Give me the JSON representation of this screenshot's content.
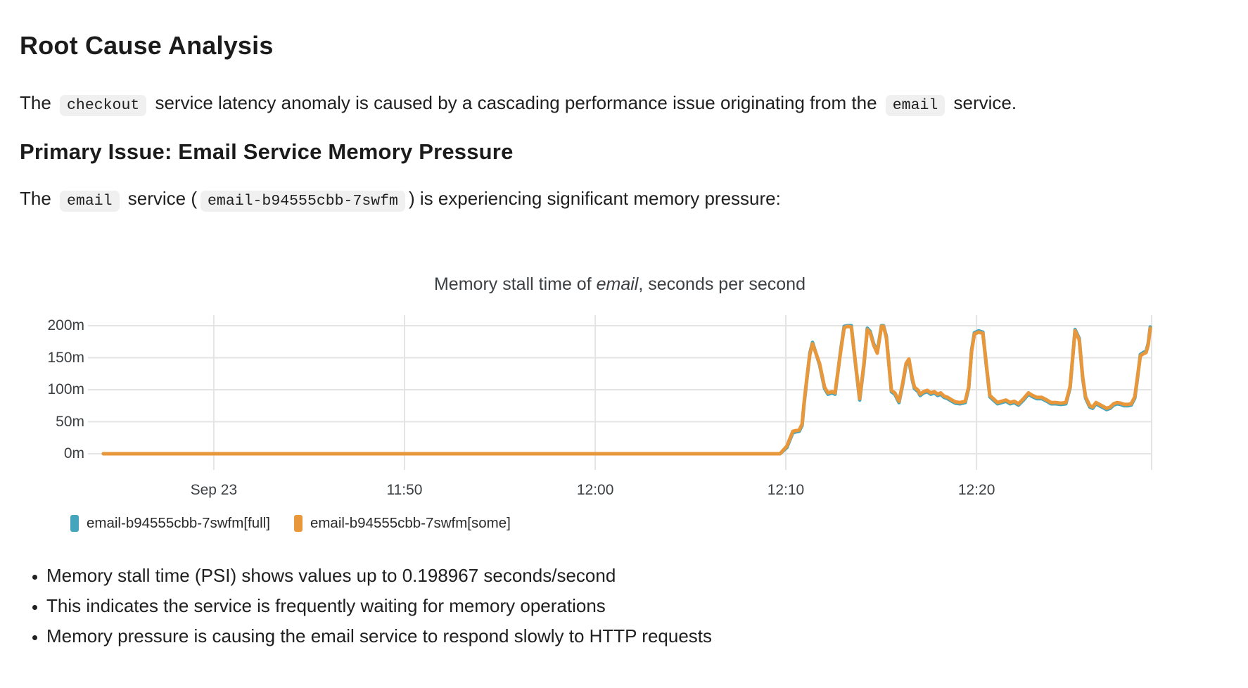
{
  "document": {
    "h1": "Root Cause Analysis",
    "p1": {
      "segments": [
        {
          "text": "The "
        },
        {
          "code": "checkout"
        },
        {
          "text": " service latency anomaly is caused by a cascading performance issue originating from the "
        },
        {
          "code": "email"
        },
        {
          "text": " service."
        }
      ]
    },
    "h2": "Primary Issue: Email Service Memory Pressure",
    "p2": {
      "segments": [
        {
          "text": "The "
        },
        {
          "code": "email"
        },
        {
          "text": " service ("
        },
        {
          "code": "email-b94555cbb-7swfm"
        },
        {
          "text": ") is experiencing significant memory pressure:"
        }
      ]
    },
    "findings": [
      "Memory stall time (PSI) shows values up to 0.198967 seconds/second",
      "This indicates the service is frequently waiting for memory operations",
      "Memory pressure is causing the email service to respond slowly to HTTP requests"
    ]
  },
  "chart_data": {
    "type": "line",
    "title_segments": [
      {
        "text": "Memory stall time of "
      },
      {
        "text": "email",
        "italic": true
      },
      {
        "text": ", seconds per second"
      }
    ],
    "title_plain": "Memory stall time of email, seconds per second",
    "ylim": [
      0,
      200
    ],
    "y_unit": "m",
    "grid": true,
    "legend_position": "bottom-left",
    "y_ticks": [
      {
        "value": 0,
        "label": "0m"
      },
      {
        "value": 50,
        "label": "50m"
      },
      {
        "value": 100,
        "label": "100m"
      },
      {
        "value": 150,
        "label": "150m"
      },
      {
        "value": 200,
        "label": "200m"
      }
    ],
    "x_ticks": [
      {
        "t": 5.78,
        "label": "Sep 23"
      },
      {
        "t": 15.77,
        "label": "11:50"
      },
      {
        "t": 25.76,
        "label": "12:00"
      },
      {
        "t": 35.74,
        "label": "12:10"
      },
      {
        "t": 45.73,
        "label": "12:20"
      }
    ],
    "x_note": "t = minutes from start of plotted window; series flat at 0 until ~12:10 then oscillates 70m-200m",
    "max_value_seconds": 0.198967,
    "series": [
      {
        "key": "full",
        "name": "email-b94555cbb-7swfm[full]",
        "color": "#45A5BD",
        "points": [
          [
            0,
            0
          ],
          [
            35.44,
            0
          ],
          [
            35.8,
            10
          ],
          [
            36.11,
            33
          ],
          [
            36.25,
            34
          ],
          [
            36.44,
            35
          ],
          [
            36.59,
            44
          ],
          [
            36.7,
            78
          ],
          [
            36.85,
            118
          ],
          [
            37,
            157
          ],
          [
            37.14,
            174
          ],
          [
            37.51,
            139
          ],
          [
            37.77,
            102
          ],
          [
            37.95,
            93
          ],
          [
            38.17,
            95
          ],
          [
            38.32,
            93
          ],
          [
            38.61,
            161
          ],
          [
            38.8,
            199
          ],
          [
            38.98,
            200
          ],
          [
            39.17,
            200
          ],
          [
            39.42,
            132
          ],
          [
            39.61,
            84
          ],
          [
            39.83,
            138
          ],
          [
            40.01,
            196
          ],
          [
            40.16,
            191
          ],
          [
            40.34,
            172
          ],
          [
            40.53,
            159
          ],
          [
            40.75,
            200
          ],
          [
            40.86,
            200
          ],
          [
            41.01,
            183
          ],
          [
            41.27,
            97
          ],
          [
            41.45,
            93
          ],
          [
            41.67,
            80
          ],
          [
            41.86,
            108
          ],
          [
            42.04,
            139
          ],
          [
            42.19,
            146
          ],
          [
            42.37,
            115
          ],
          [
            42.48,
            102
          ],
          [
            42.67,
            97
          ],
          [
            42.78,
            91
          ],
          [
            42.96,
            95
          ],
          [
            43.15,
            97
          ],
          [
            43.33,
            93
          ],
          [
            43.52,
            95
          ],
          [
            43.7,
            91
          ],
          [
            43.85,
            93
          ],
          [
            44.03,
            88
          ],
          [
            44.22,
            86
          ],
          [
            44.44,
            82
          ],
          [
            44.62,
            79
          ],
          [
            44.88,
            78
          ],
          [
            45.14,
            80
          ],
          [
            45.32,
            103
          ],
          [
            45.47,
            162
          ],
          [
            45.62,
            189
          ],
          [
            45.84,
            192
          ],
          [
            46.06,
            190
          ],
          [
            46.24,
            138
          ],
          [
            46.43,
            89
          ],
          [
            46.61,
            84
          ],
          [
            46.83,
            78
          ],
          [
            47.05,
            80
          ],
          [
            47.27,
            82
          ],
          [
            47.49,
            78
          ],
          [
            47.71,
            80
          ],
          [
            47.93,
            76
          ],
          [
            48.19,
            84
          ],
          [
            48.45,
            93
          ],
          [
            48.67,
            89
          ],
          [
            48.89,
            86
          ],
          [
            49.15,
            86
          ],
          [
            49.41,
            82
          ],
          [
            49.63,
            78
          ],
          [
            49.89,
            78
          ],
          [
            50.15,
            77
          ],
          [
            50.41,
            78
          ],
          [
            50.63,
            103
          ],
          [
            50.89,
            194
          ],
          [
            51.11,
            180
          ],
          [
            51.29,
            118
          ],
          [
            51.44,
            87
          ],
          [
            51.66,
            73
          ],
          [
            51.81,
            71
          ],
          [
            51.99,
            78
          ],
          [
            52.17,
            75
          ],
          [
            52.36,
            72
          ],
          [
            52.54,
            69
          ],
          [
            52.73,
            71
          ],
          [
            52.91,
            76
          ],
          [
            53.09,
            78
          ],
          [
            53.28,
            77
          ],
          [
            53.46,
            75
          ],
          [
            53.65,
            75
          ],
          [
            53.83,
            76
          ],
          [
            54.02,
            87
          ],
          [
            54.16,
            118
          ],
          [
            54.31,
            155
          ],
          [
            54.46,
            158
          ],
          [
            54.61,
            160
          ],
          [
            54.72,
            172
          ],
          [
            54.83,
            198
          ]
        ]
      },
      {
        "key": "some",
        "name": "email-b94555cbb-7swfm[some]",
        "color": "#E8973B",
        "points": [
          [
            0,
            0
          ],
          [
            35.44,
            0
          ],
          [
            35.8,
            12
          ],
          [
            36.11,
            35
          ],
          [
            36.25,
            36
          ],
          [
            36.44,
            37
          ],
          [
            36.59,
            46
          ],
          [
            36.7,
            80
          ],
          [
            36.85,
            120
          ],
          [
            37,
            155
          ],
          [
            37.14,
            172
          ],
          [
            37.51,
            141
          ],
          [
            37.77,
            104
          ],
          [
            37.95,
            95
          ],
          [
            38.17,
            97
          ],
          [
            38.32,
            95
          ],
          [
            38.61,
            159
          ],
          [
            38.8,
            197
          ],
          [
            38.98,
            199
          ],
          [
            39.17,
            198
          ],
          [
            39.42,
            134
          ],
          [
            39.61,
            86
          ],
          [
            39.83,
            140
          ],
          [
            40.01,
            194
          ],
          [
            40.16,
            189
          ],
          [
            40.34,
            170
          ],
          [
            40.53,
            157
          ],
          [
            40.75,
            199
          ],
          [
            40.86,
            199
          ],
          [
            41.01,
            181
          ],
          [
            41.27,
            99
          ],
          [
            41.45,
            95
          ],
          [
            41.67,
            82
          ],
          [
            41.86,
            110
          ],
          [
            42.04,
            141
          ],
          [
            42.19,
            148
          ],
          [
            42.37,
            117
          ],
          [
            42.48,
            104
          ],
          [
            42.67,
            99
          ],
          [
            42.78,
            93
          ],
          [
            42.96,
            97
          ],
          [
            43.15,
            99
          ],
          [
            43.33,
            95
          ],
          [
            43.52,
            97
          ],
          [
            43.7,
            93
          ],
          [
            43.85,
            95
          ],
          [
            44.03,
            90
          ],
          [
            44.22,
            88
          ],
          [
            44.44,
            84
          ],
          [
            44.62,
            81
          ],
          [
            44.88,
            80
          ],
          [
            45.14,
            82
          ],
          [
            45.32,
            105
          ],
          [
            45.47,
            160
          ],
          [
            45.62,
            187
          ],
          [
            45.84,
            190
          ],
          [
            46.06,
            188
          ],
          [
            46.24,
            140
          ],
          [
            46.43,
            91
          ],
          [
            46.61,
            86
          ],
          [
            46.83,
            80
          ],
          [
            47.05,
            82
          ],
          [
            47.27,
            84
          ],
          [
            47.49,
            80
          ],
          [
            47.71,
            82
          ],
          [
            47.93,
            78
          ],
          [
            48.19,
            86
          ],
          [
            48.45,
            95
          ],
          [
            48.67,
            91
          ],
          [
            48.89,
            88
          ],
          [
            49.15,
            88
          ],
          [
            49.41,
            84
          ],
          [
            49.63,
            80
          ],
          [
            49.89,
            80
          ],
          [
            50.15,
            79
          ],
          [
            50.41,
            80
          ],
          [
            50.63,
            105
          ],
          [
            50.89,
            192
          ],
          [
            51.11,
            178
          ],
          [
            51.29,
            120
          ],
          [
            51.44,
            89
          ],
          [
            51.66,
            75
          ],
          [
            51.81,
            73
          ],
          [
            51.99,
            80
          ],
          [
            52.17,
            77
          ],
          [
            52.36,
            74
          ],
          [
            52.54,
            71
          ],
          [
            52.73,
            73
          ],
          [
            52.91,
            78
          ],
          [
            53.09,
            80
          ],
          [
            53.28,
            79
          ],
          [
            53.46,
            77
          ],
          [
            53.65,
            77
          ],
          [
            53.83,
            78
          ],
          [
            54.02,
            89
          ],
          [
            54.16,
            120
          ],
          [
            54.31,
            153
          ],
          [
            54.46,
            156
          ],
          [
            54.61,
            158
          ],
          [
            54.72,
            170
          ],
          [
            54.83,
            196
          ]
        ]
      }
    ]
  },
  "colors": {
    "grid": "#e4e4e4",
    "code_bg": "#f0f0f1",
    "heading_text": "#1b1b1b",
    "body_text": "#202020",
    "axis_text": "#3c4043",
    "series_full": "#45A5BD",
    "series_some": "#E8973B"
  }
}
